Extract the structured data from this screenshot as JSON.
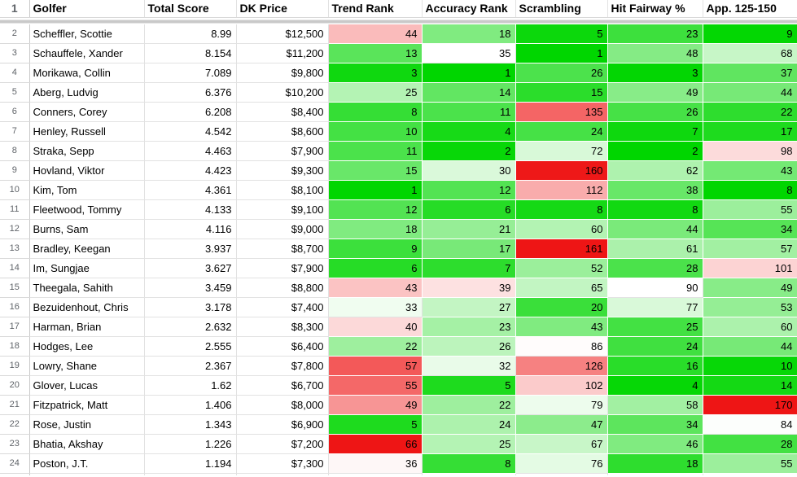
{
  "sheet": {
    "header_row_number": "1",
    "columns": [
      {
        "id": "golfer",
        "label": "Golfer"
      },
      {
        "id": "total_score",
        "label": "Total Score"
      },
      {
        "id": "dk_price",
        "label": "DK Price"
      },
      {
        "id": "trend_rank",
        "label": "Trend Rank"
      },
      {
        "id": "accuracy_rank",
        "label": "Accuracy Rank"
      },
      {
        "id": "scrambling",
        "label": "Scrambling"
      },
      {
        "id": "hit_fairway",
        "label": "Hit Fairway %"
      },
      {
        "id": "app_125_150",
        "label": "App. 125-150"
      }
    ],
    "rows": [
      {
        "n": "2",
        "golfer": "Scheffler, Scottie",
        "total_score": "8.99",
        "dk_price": "$12,500",
        "trend_rank": 44,
        "accuracy_rank": 18,
        "scrambling": 5,
        "hit_fairway": 23,
        "app_125_150": 9
      },
      {
        "n": "3",
        "golfer": "Schauffele, Xander",
        "total_score": "8.154",
        "dk_price": "$11,200",
        "trend_rank": 13,
        "accuracy_rank": 35,
        "scrambling": 1,
        "hit_fairway": 48,
        "app_125_150": 68
      },
      {
        "n": "4",
        "golfer": "Morikawa, Collin",
        "total_score": "7.089",
        "dk_price": "$9,800",
        "trend_rank": 3,
        "accuracy_rank": 1,
        "scrambling": 26,
        "hit_fairway": 3,
        "app_125_150": 37
      },
      {
        "n": "5",
        "golfer": "Aberg, Ludvig",
        "total_score": "6.376",
        "dk_price": "$10,200",
        "trend_rank": 25,
        "accuracy_rank": 14,
        "scrambling": 15,
        "hit_fairway": 49,
        "app_125_150": 44
      },
      {
        "n": "6",
        "golfer": "Conners, Corey",
        "total_score": "6.208",
        "dk_price": "$8,400",
        "trend_rank": 8,
        "accuracy_rank": 11,
        "scrambling": 135,
        "hit_fairway": 26,
        "app_125_150": 22
      },
      {
        "n": "7",
        "golfer": "Henley, Russell",
        "total_score": "4.542",
        "dk_price": "$8,600",
        "trend_rank": 10,
        "accuracy_rank": 4,
        "scrambling": 24,
        "hit_fairway": 7,
        "app_125_150": 17
      },
      {
        "n": "8",
        "golfer": "Straka, Sepp",
        "total_score": "4.463",
        "dk_price": "$7,900",
        "trend_rank": 11,
        "accuracy_rank": 2,
        "scrambling": 72,
        "hit_fairway": 2,
        "app_125_150": 98
      },
      {
        "n": "9",
        "golfer": "Hovland, Viktor",
        "total_score": "4.423",
        "dk_price": "$9,300",
        "trend_rank": 15,
        "accuracy_rank": 30,
        "scrambling": 160,
        "hit_fairway": 62,
        "app_125_150": 43
      },
      {
        "n": "10",
        "golfer": "Kim, Tom",
        "total_score": "4.361",
        "dk_price": "$8,100",
        "trend_rank": 1,
        "accuracy_rank": 12,
        "scrambling": 112,
        "hit_fairway": 38,
        "app_125_150": 8
      },
      {
        "n": "11",
        "golfer": "Fleetwood, Tommy",
        "total_score": "4.133",
        "dk_price": "$9,100",
        "trend_rank": 12,
        "accuracy_rank": 6,
        "scrambling": 8,
        "hit_fairway": 8,
        "app_125_150": 55
      },
      {
        "n": "12",
        "golfer": "Burns, Sam",
        "total_score": "4.116",
        "dk_price": "$9,000",
        "trend_rank": 18,
        "accuracy_rank": 21,
        "scrambling": 60,
        "hit_fairway": 44,
        "app_125_150": 34
      },
      {
        "n": "13",
        "golfer": "Bradley, Keegan",
        "total_score": "3.937",
        "dk_price": "$8,700",
        "trend_rank": 9,
        "accuracy_rank": 17,
        "scrambling": 161,
        "hit_fairway": 61,
        "app_125_150": 57
      },
      {
        "n": "14",
        "golfer": "Im, Sungjae",
        "total_score": "3.627",
        "dk_price": "$7,900",
        "trend_rank": 6,
        "accuracy_rank": 7,
        "scrambling": 52,
        "hit_fairway": 28,
        "app_125_150": 101
      },
      {
        "n": "15",
        "golfer": "Theegala, Sahith",
        "total_score": "3.459",
        "dk_price": "$8,800",
        "trend_rank": 43,
        "accuracy_rank": 39,
        "scrambling": 65,
        "hit_fairway": 90,
        "app_125_150": 49
      },
      {
        "n": "16",
        "golfer": "Bezuidenhout, Chris",
        "total_score": "3.178",
        "dk_price": "$7,400",
        "trend_rank": 33,
        "accuracy_rank": 27,
        "scrambling": 20,
        "hit_fairway": 77,
        "app_125_150": 53
      },
      {
        "n": "17",
        "golfer": "Harman, Brian",
        "total_score": "2.632",
        "dk_price": "$8,300",
        "trend_rank": 40,
        "accuracy_rank": 23,
        "scrambling": 43,
        "hit_fairway": 25,
        "app_125_150": 60
      },
      {
        "n": "18",
        "golfer": "Hodges, Lee",
        "total_score": "2.555",
        "dk_price": "$6,400",
        "trend_rank": 22,
        "accuracy_rank": 26,
        "scrambling": 86,
        "hit_fairway": 24,
        "app_125_150": 44
      },
      {
        "n": "19",
        "golfer": "Lowry, Shane",
        "total_score": "2.367",
        "dk_price": "$7,800",
        "trend_rank": 57,
        "accuracy_rank": 32,
        "scrambling": 126,
        "hit_fairway": 16,
        "app_125_150": 10
      },
      {
        "n": "20",
        "golfer": "Glover, Lucas",
        "total_score": "1.62",
        "dk_price": "$6,700",
        "trend_rank": 55,
        "accuracy_rank": 5,
        "scrambling": 102,
        "hit_fairway": 4,
        "app_125_150": 14
      },
      {
        "n": "21",
        "golfer": "Fitzpatrick, Matt",
        "total_score": "1.406",
        "dk_price": "$8,000",
        "trend_rank": 49,
        "accuracy_rank": 22,
        "scrambling": 79,
        "hit_fairway": 58,
        "app_125_150": 170
      },
      {
        "n": "22",
        "golfer": "Rose, Justin",
        "total_score": "1.343",
        "dk_price": "$6,900",
        "trend_rank": 5,
        "accuracy_rank": 24,
        "scrambling": 47,
        "hit_fairway": 34,
        "app_125_150": 84
      },
      {
        "n": "23",
        "golfer": "Bhatia, Akshay",
        "total_score": "1.226",
        "dk_price": "$7,200",
        "trend_rank": 66,
        "accuracy_rank": 25,
        "scrambling": 67,
        "hit_fairway": 46,
        "app_125_150": 28
      },
      {
        "n": "24",
        "golfer": "Poston, J.T.",
        "total_score": "1.194",
        "dk_price": "$7,300",
        "trend_rank": 36,
        "accuracy_rank": 8,
        "scrambling": 76,
        "hit_fairway": 18,
        "app_125_150": 55
      }
    ],
    "conditional_format": {
      "green": "#00d600",
      "white": "#ffffff",
      "red": "#ee1515",
      "scales": {
        "trend_rank": {
          "min": 1,
          "mid": 35,
          "max": 66
        },
        "accuracy_rank": {
          "min": 1,
          "mid": 35,
          "max": 66
        },
        "scrambling": {
          "min": 1,
          "mid": 85,
          "max": 161
        },
        "hit_fairway": {
          "min": 2,
          "mid": 90,
          "max": 170
        },
        "app_125_150": {
          "min": 8,
          "mid": 85,
          "max": 170
        }
      }
    }
  }
}
